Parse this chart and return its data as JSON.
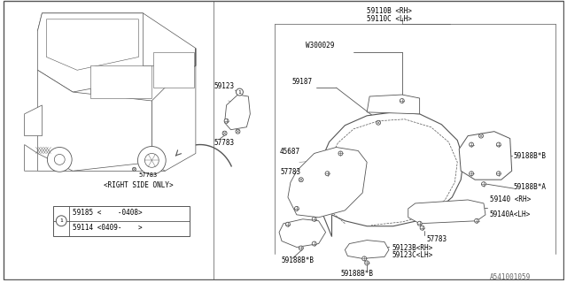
{
  "bg_color": "#FFFFFF",
  "line_color": "#555555",
  "text_color": "#000000",
  "diagram_code": "A541001059",
  "font_size": 5.5,
  "legend_parts": [
    "59185 <    -0408>",
    "59114 <0409-    >"
  ],
  "labels": {
    "59110B": "59110B <RH>",
    "59110C": "59110C <LH>",
    "W300029": "W300029",
    "59187": "59187",
    "45687": "45687",
    "57783a": "57783",
    "57783b": "57783",
    "57783c": "57783",
    "59188B_B1": "59188B*B",
    "59188B_B2": "59188B*B",
    "59188B_B3": "59188B*B",
    "59188B_A": "59188B*A",
    "59140": "59140 <RH>",
    "59140A": "59140A<LH>",
    "59123B": "59123B<RH>",
    "59123C": "59123C<LH>",
    "59123": "59123",
    "right_side": "<RIGHT SIDE ONLY>"
  }
}
